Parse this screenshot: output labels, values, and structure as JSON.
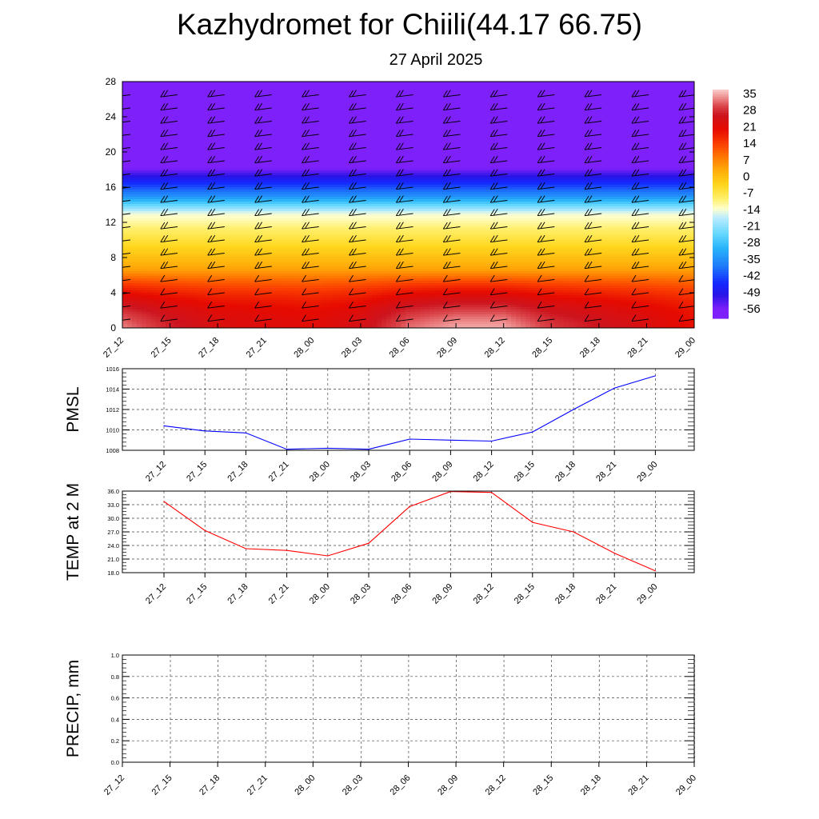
{
  "header": {
    "title": "Kazhydromet for Chiili(44.17 66.75)",
    "date": "27 April 2025"
  },
  "chart_data": [
    {
      "type": "heatmap",
      "name": "temperature-cross-section",
      "x_labels": [
        "27_12",
        "27_15",
        "27_18",
        "27_21",
        "28_00",
        "28_03",
        "28_06",
        "28_09",
        "28_12",
        "28_15",
        "28_18",
        "28_21",
        "29_00"
      ],
      "y_ticks": [
        "0",
        "4",
        "8",
        "12",
        "16",
        "20",
        "24",
        "28"
      ],
      "ylim": [
        0,
        28
      ],
      "colorbar_labels": [
        "35",
        "28",
        "21",
        "14",
        "7",
        "0",
        "-7",
        "-14",
        "-21",
        "-28",
        "-35",
        "-42",
        "-49",
        "-56"
      ],
      "colorbar_range": [
        -60,
        38
      ],
      "surface_temps": [
        34,
        28,
        24,
        23,
        22,
        25,
        33,
        36,
        36,
        30,
        27,
        24,
        20
      ],
      "profile_levels": [
        {
          "h": 0,
          "t": 0
        },
        {
          "h": 13,
          "t": -14
        },
        {
          "h": 15,
          "t": -35
        },
        {
          "h": 18.7,
          "t": -60
        },
        {
          "h": 28,
          "t": -60
        }
      ],
      "wind_barbs": true
    },
    {
      "type": "line",
      "name": "pmsl",
      "ylabel": "PMSL",
      "x": [
        "27_12",
        "27_15",
        "27_18",
        "27_21",
        "28_00",
        "28_03",
        "28_06",
        "28_09",
        "28_12",
        "28_15",
        "28_18",
        "28_21",
        "29_00"
      ],
      "values": [
        1010.4,
        1009.9,
        1009.7,
        1008.1,
        1008.2,
        1008.1,
        1009.1,
        1009.0,
        1008.9,
        1009.8,
        1012.0,
        1014.1,
        1015.3
      ],
      "y_ticks": [
        "1008",
        "1010",
        "1012",
        "1014",
        "1016"
      ],
      "ylim": [
        1008,
        1016
      ],
      "color": "#0000ff",
      "grid": true
    },
    {
      "type": "line",
      "name": "temp-2m",
      "ylabel": "TEMP at 2 M",
      "x": [
        "27_12",
        "27_15",
        "27_18",
        "27_21",
        "28_00",
        "28_03",
        "28_06",
        "28_09",
        "28_12",
        "28_15",
        "28_18",
        "28_21",
        "29_00"
      ],
      "values": [
        33.7,
        27.3,
        23.3,
        22.9,
        21.7,
        24.5,
        32.6,
        35.9,
        35.7,
        29.1,
        27.0,
        22.3,
        18.4
      ],
      "y_ticks": [
        "18.0",
        "21.0",
        "24.0",
        "27.0",
        "30.0",
        "33.0",
        "36.0"
      ],
      "ylim": [
        18,
        36
      ],
      "color": "#ff0000",
      "grid": true
    },
    {
      "type": "line",
      "name": "precip",
      "ylabel": "PRECIP, mm",
      "x": [
        "27_12",
        "27_15",
        "27_18",
        "27_21",
        "28_00",
        "28_03",
        "28_06",
        "28_09",
        "28_12",
        "28_15",
        "28_18",
        "28_21",
        "29_00"
      ],
      "values": [
        0,
        0,
        0,
        0,
        0,
        0,
        0,
        0,
        0,
        0,
        0,
        0,
        0
      ],
      "y_ticks": [
        "0.0",
        "0.2",
        "0.4",
        "0.6",
        "0.8",
        "1.0"
      ],
      "ylim": [
        0,
        1
      ],
      "color": "#006400",
      "grid": true
    }
  ]
}
